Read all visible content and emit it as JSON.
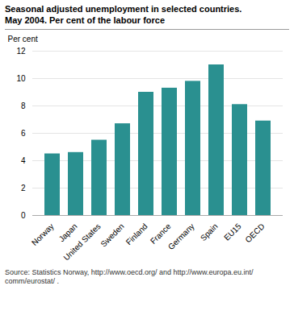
{
  "chart_data": {
    "type": "bar",
    "title": "Seasonal adjusted unemployment in selected countries.",
    "subtitle": "May 2004. Per cent of the labour force",
    "ylabel": "Per cent",
    "categories": [
      "Norway",
      "Japan",
      "United States",
      "Sweden",
      "Finland",
      "France",
      "Germany",
      "Spain",
      "EU15",
      "OECD"
    ],
    "values": [
      4.5,
      4.6,
      5.5,
      6.7,
      9.0,
      9.3,
      9.8,
      11.0,
      8.1,
      6.9
    ],
    "color": "#2a9090",
    "ylim": [
      0,
      12
    ],
    "yticks": [
      0,
      2,
      4,
      6,
      8,
      10,
      12
    ],
    "grid": true,
    "source": "Source: Statistics Norway, http://www.oecd.org/ and http://www.europa.eu.int/\ncomm/eurostat/ ."
  }
}
